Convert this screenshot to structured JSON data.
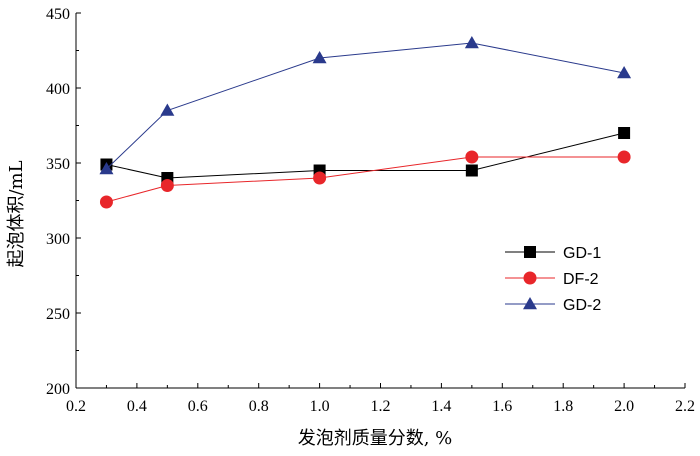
{
  "chart_data": {
    "type": "line",
    "xlabel": "发泡剂质量分数, %",
    "ylabel": "起泡体积/mL",
    "xlim": [
      0.2,
      2.2
    ],
    "ylim": [
      200,
      450
    ],
    "xticks": [
      "0.2",
      "0.4",
      "0.6",
      "0.8",
      "1.0",
      "1.2",
      "1.4",
      "1.6",
      "1.8",
      "2.0",
      "2.2"
    ],
    "yticks": [
      "200",
      "250",
      "300",
      "350",
      "400",
      "450"
    ],
    "grid": false,
    "legend_position": "right",
    "series": [
      {
        "name": "GD-1",
        "marker": "square",
        "color": "#000000",
        "x": [
          0.3,
          0.5,
          1.0,
          1.5,
          2.0
        ],
        "y": [
          349,
          340,
          345,
          345,
          370
        ]
      },
      {
        "name": "DF-2",
        "marker": "circle",
        "color": "#e8262a",
        "x": [
          0.3,
          0.5,
          1.0,
          1.5,
          2.0
        ],
        "y": [
          324,
          335,
          340,
          354,
          354
        ]
      },
      {
        "name": "GD-2",
        "marker": "triangle",
        "color": "#2a3a8c",
        "x": [
          0.3,
          0.5,
          1.0,
          1.5,
          2.0
        ],
        "y": [
          346,
          385,
          420,
          430,
          410
        ]
      }
    ]
  }
}
